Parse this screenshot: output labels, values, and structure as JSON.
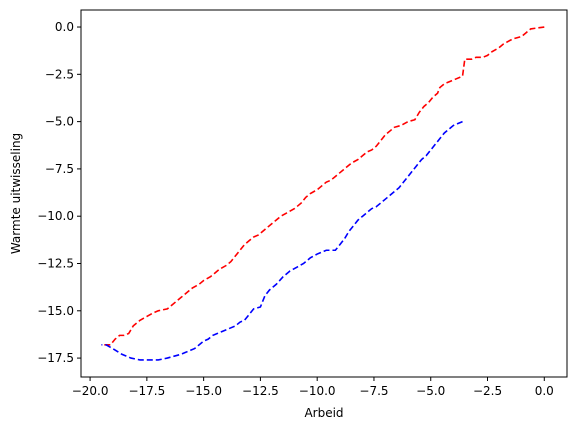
{
  "chart_data": {
    "type": "line",
    "title": "",
    "xlabel": "Arbeid",
    "ylabel": "Warmte uitwisseling",
    "xlim": [
      -20.4,
      1.0
    ],
    "ylim": [
      -18.5,
      0.9
    ],
    "grid": false,
    "legend": "none",
    "xticks": [
      -20.0,
      -17.5,
      -15.0,
      -12.5,
      -10.0,
      -7.5,
      -5.0,
      -2.5,
      0.0
    ],
    "xtick_labels": [
      "−20.0",
      "−17.5",
      "−15.0",
      "−12.5",
      "−10.0",
      "−7.5",
      "−5.0",
      "−2.5",
      "0.0"
    ],
    "yticks": [
      0.0,
      -2.5,
      -5.0,
      -7.5,
      -10.0,
      -12.5,
      -15.0,
      -17.5
    ],
    "ytick_labels": [
      "0.0",
      "−2.5",
      "−5.0",
      "−7.5",
      "−10.0",
      "−12.5",
      "−15.0",
      "−17.5"
    ],
    "series": [
      {
        "color": "#ff0000",
        "line_style": "dashed",
        "x": [
          0.0,
          -0.6,
          -0.8,
          -1.0,
          -1.3,
          -1.5,
          -1.8,
          -2.0,
          -2.3,
          -2.5,
          -2.7,
          -3.0,
          -3.2,
          -3.5,
          -3.6,
          -4.0,
          -4.4,
          -4.6,
          -4.7,
          -4.9,
          -5.1,
          -5.3,
          -5.5,
          -5.7,
          -6.0,
          -6.3,
          -6.6,
          -6.8,
          -7.0,
          -7.2,
          -7.4,
          -7.6,
          -7.8,
          -8.0,
          -8.2,
          -8.5,
          -8.8,
          -9.0,
          -9.2,
          -9.4,
          -9.6,
          -9.8,
          -10.0,
          -10.3,
          -10.5,
          -10.7,
          -11.0,
          -11.3,
          -11.6,
          -11.8,
          -12.0,
          -12.2,
          -12.4,
          -12.6,
          -12.8,
          -13.0,
          -13.2,
          -13.4,
          -13.6,
          -13.8,
          -14.0,
          -14.3,
          -14.5,
          -14.7,
          -15.0,
          -15.2,
          -15.5,
          -15.8,
          -16.0,
          -16.2,
          -16.4,
          -16.6,
          -16.8,
          -17.0,
          -17.2,
          -17.5,
          -17.8,
          -18.1,
          -18.3,
          -18.5,
          -18.7,
          -18.9,
          -19.1,
          -19.3,
          -19.5
        ],
        "y": [
          0.0,
          -0.1,
          -0.3,
          -0.5,
          -0.6,
          -0.7,
          -0.9,
          -1.1,
          -1.3,
          -1.5,
          -1.6,
          -1.6,
          -1.7,
          -1.7,
          -2.6,
          -2.8,
          -3.0,
          -3.2,
          -3.5,
          -3.7,
          -4.0,
          -4.2,
          -4.5,
          -4.9,
          -5.0,
          -5.2,
          -5.3,
          -5.5,
          -5.7,
          -6.0,
          -6.3,
          -6.5,
          -6.6,
          -6.8,
          -7.0,
          -7.2,
          -7.5,
          -7.7,
          -7.9,
          -8.1,
          -8.2,
          -8.4,
          -8.6,
          -8.8,
          -9.0,
          -9.3,
          -9.6,
          -9.8,
          -10.0,
          -10.2,
          -10.4,
          -10.6,
          -10.8,
          -11.0,
          -11.1,
          -11.3,
          -11.5,
          -11.8,
          -12.1,
          -12.4,
          -12.6,
          -12.8,
          -13.0,
          -13.2,
          -13.4,
          -13.6,
          -13.8,
          -14.1,
          -14.3,
          -14.5,
          -14.7,
          -14.9,
          -14.95,
          -15.0,
          -15.1,
          -15.3,
          -15.5,
          -15.8,
          -16.2,
          -16.3,
          -16.3,
          -16.5,
          -16.8,
          -16.8,
          -16.8
        ]
      },
      {
        "color": "#0000ff",
        "line_style": "dashed",
        "x": [
          -3.6,
          -3.8,
          -4.0,
          -4.2,
          -4.4,
          -4.6,
          -4.8,
          -5.0,
          -5.2,
          -5.4,
          -5.6,
          -5.8,
          -6.0,
          -6.2,
          -6.4,
          -6.6,
          -6.8,
          -7.0,
          -7.2,
          -7.4,
          -7.6,
          -7.8,
          -8.0,
          -8.2,
          -8.4,
          -8.6,
          -8.8,
          -9.0,
          -9.2,
          -9.4,
          -9.6,
          -9.8,
          -10.0,
          -10.3,
          -10.6,
          -10.9,
          -11.2,
          -11.5,
          -11.8,
          -12.1,
          -12.3,
          -12.5,
          -12.8,
          -13.0,
          -13.2,
          -13.4,
          -13.6,
          -13.8,
          -14.0,
          -14.2,
          -14.4,
          -14.6,
          -14.8,
          -15.0,
          -15.2,
          -15.4,
          -15.6,
          -15.8,
          -16.0,
          -16.3,
          -16.6,
          -17.0,
          -17.4,
          -17.8,
          -18.2,
          -18.6,
          -19.0,
          -19.3,
          -19.5
        ],
        "y": [
          -5.0,
          -5.1,
          -5.2,
          -5.4,
          -5.6,
          -5.9,
          -6.2,
          -6.5,
          -6.8,
          -7.0,
          -7.3,
          -7.6,
          -7.9,
          -8.2,
          -8.5,
          -8.7,
          -8.9,
          -9.1,
          -9.3,
          -9.5,
          -9.6,
          -9.8,
          -10.0,
          -10.2,
          -10.5,
          -10.8,
          -11.2,
          -11.5,
          -11.8,
          -11.8,
          -11.8,
          -11.9,
          -12.0,
          -12.2,
          -12.5,
          -12.7,
          -12.9,
          -13.2,
          -13.6,
          -13.9,
          -14.2,
          -14.8,
          -14.9,
          -15.2,
          -15.5,
          -15.6,
          -15.8,
          -15.9,
          -16.0,
          -16.1,
          -16.2,
          -16.3,
          -16.5,
          -16.6,
          -16.8,
          -17.0,
          -17.1,
          -17.2,
          -17.3,
          -17.4,
          -17.5,
          -17.6,
          -17.6,
          -17.6,
          -17.5,
          -17.3,
          -17.0,
          -16.8,
          -16.8
        ]
      }
    ]
  }
}
